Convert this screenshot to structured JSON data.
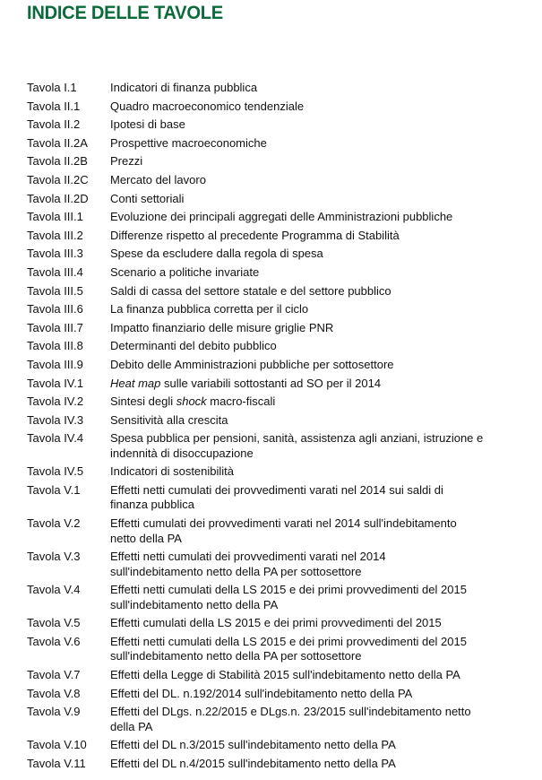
{
  "heading": "INDICE DELLE TAVOLE",
  "colors": {
    "heading": "#0b6b3a",
    "text": "#111111"
  },
  "items": [
    {
      "label": "Tavola I.1",
      "lines": [
        "Indicatori di finanza pubblica"
      ]
    },
    {
      "label": "Tavola II.1",
      "lines": [
        "Quadro macroeconomico tendenziale"
      ]
    },
    {
      "label": "Tavola II.2",
      "lines": [
        "Ipotesi di base"
      ]
    },
    {
      "label": "Tavola II.2A",
      "lines": [
        "Prospettive macroeconomiche"
      ]
    },
    {
      "label": "Tavola II.2B",
      "lines": [
        "Prezzi"
      ]
    },
    {
      "label": "Tavola II.2C",
      "lines": [
        "Mercato del lavoro"
      ]
    },
    {
      "label": "Tavola II.2D",
      "lines": [
        "Conti settoriali"
      ]
    },
    {
      "label": "Tavola III.1",
      "lines": [
        "Evoluzione dei principali aggregati delle Amministrazioni pubbliche"
      ]
    },
    {
      "label": "Tavola III.2",
      "lines": [
        "Differenze rispetto al precedente Programma di Stabilità"
      ]
    },
    {
      "label": "Tavola III.3",
      "lines": [
        "Spese da escludere dalla regola di spesa"
      ]
    },
    {
      "label": "Tavola III.4",
      "lines": [
        "Scenario a politiche invariate"
      ]
    },
    {
      "label": "Tavola III.5",
      "lines": [
        "Saldi di cassa del settore statale e del settore pubblico"
      ]
    },
    {
      "label": "Tavola III.6",
      "lines": [
        "La finanza pubblica corretta per il ciclo"
      ]
    },
    {
      "label": "Tavola III.7",
      "lines": [
        "Impatto finanziario delle misure griglie PNR"
      ]
    },
    {
      "label": "Tavola III.8",
      "lines": [
        "Determinanti del debito pubblico"
      ]
    },
    {
      "label": "Tavola III.9",
      "lines": [
        "Debito delle Amministrazioni pubbliche per sottosettore"
      ]
    },
    {
      "label": "Tavola IV.1",
      "em_pre": "",
      "em": "Heat map",
      "em_post": " sulle variabili sottostanti ad SO per il 2014"
    },
    {
      "label": "Tavola IV.2",
      "em_pre": "Sintesi degli ",
      "em": "shock",
      "em_post": " macro-fiscali"
    },
    {
      "label": "Tavola IV.3",
      "lines": [
        "Sensitività alla crescita"
      ]
    },
    {
      "label": "Tavola IV.4",
      "lines": [
        "Spesa pubblica per pensioni, sanità, assistenza agli anziani, istruzione e",
        "indennità di disoccupazione"
      ]
    },
    {
      "label": "Tavola IV.5",
      "lines": [
        "Indicatori di sostenibilità"
      ]
    },
    {
      "label": "Tavola V.1",
      "lines": [
        "Effetti netti cumulati dei provvedimenti varati nel 2014 sui saldi di",
        "finanza pubblica"
      ]
    },
    {
      "label": "Tavola V.2",
      "lines": [
        "Effetti cumulati dei provvedimenti varati nel 2014 sull'indebitamento",
        "netto della PA"
      ]
    },
    {
      "label": "Tavola V.3",
      "lines": [
        "Effetti netti cumulati dei provvedimenti varati nel 2014",
        "sull'indebitamento netto della PA per sottosettore"
      ]
    },
    {
      "label": "Tavola V.4",
      "lines": [
        "Effetti netti cumulati della LS 2015 e dei primi provvedimenti del 2015",
        "sull'indebitamento netto della PA"
      ]
    },
    {
      "label": "Tavola V.5",
      "lines": [
        "Effetti cumulati della LS 2015 e dei primi provvedimenti del 2015"
      ]
    },
    {
      "label": "Tavola V.6",
      "lines": [
        "Effetti netti cumulati della LS 2015 e dei primi provvedimenti del 2015",
        "sull'indebitamento netto della PA per sottosettore"
      ]
    },
    {
      "label": "Tavola V.7",
      "lines": [
        "Effetti della Legge di Stabilità 2015 sull'indebitamento netto della PA"
      ]
    },
    {
      "label": "Tavola V.8",
      "lines": [
        "Effetti del DL. n.192/2014 sull'indebitamento netto della PA"
      ]
    },
    {
      "label": "Tavola V.9",
      "lines": [
        "Effetti del DLgs. n.22/2015 e DLgs.n. 23/2015 sull'indebitamento netto",
        "della PA"
      ]
    },
    {
      "label": "Tavola V.10",
      "lines": [
        "Effetti del DL n.3/2015 sull'indebitamento netto della PA"
      ]
    },
    {
      "label": "Tavola V.11",
      "lines": [
        "Effetti del DL n.4/2015 sull'indebitamento netto della PA"
      ]
    }
  ]
}
